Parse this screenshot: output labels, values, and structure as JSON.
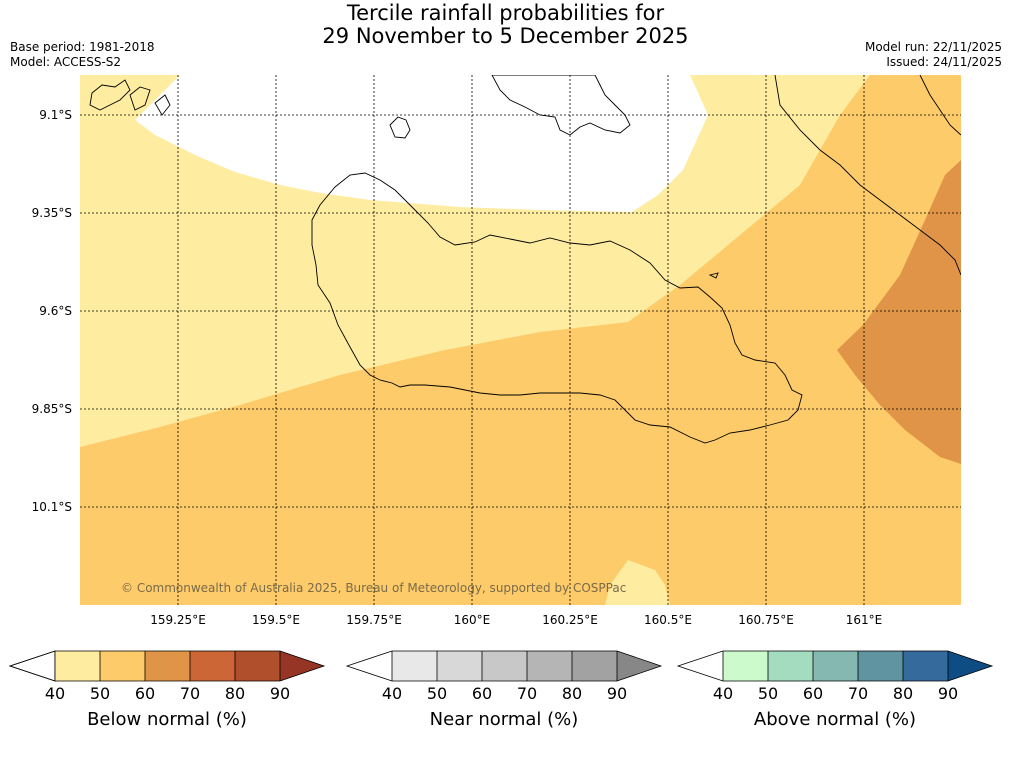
{
  "header": {
    "title_line1": "Tercile rainfall probabilities for",
    "title_line2": "29 November to 5 December 2025",
    "base_period": "Base period: 1981-2018",
    "model": "Model: ACCESS-S2",
    "model_run": "Model run: 22/11/2025",
    "issued": "Issued: 24/11/2025"
  },
  "map": {
    "lat_labels": [
      "9.1°S",
      "9.35°S",
      "9.6°S",
      "9.85°S",
      "10.1°S"
    ],
    "lon_labels": [
      "159.25°E",
      "159.5°E",
      "159.75°E",
      "160°E",
      "160.25°E",
      "160.5°E",
      "160.75°E",
      "161°E"
    ],
    "copyright": "© Commonwealth of Australia 2025, Bureau of Meteorology, supported by COSPPac",
    "colors": {
      "below_40_50": "#feeca0",
      "below_50_60": "#fdcb69",
      "below_60_70": "#e09448",
      "white": "#ffffff"
    }
  },
  "colorbars": [
    {
      "name": "below",
      "title": "Below normal (%)",
      "ticks": [
        "40",
        "50",
        "60",
        "70",
        "80",
        "90"
      ],
      "colors": [
        "#feeca0",
        "#fdcb69",
        "#e09448",
        "#cd6637",
        "#b04f2b",
        "#963525"
      ]
    },
    {
      "name": "near",
      "title": "Near normal (%)",
      "ticks": [
        "40",
        "50",
        "60",
        "70",
        "80",
        "90"
      ],
      "colors": [
        "#e8e8e8",
        "#d8d8d8",
        "#c8c8c8",
        "#b5b5b5",
        "#a2a2a2",
        "#878787"
      ]
    },
    {
      "name": "above",
      "title": "Above normal (%)",
      "ticks": [
        "40",
        "50",
        "60",
        "70",
        "80",
        "90"
      ],
      "colors": [
        "#ccfacc",
        "#a4dcc0",
        "#84b8b0",
        "#5f94a0",
        "#346a9c",
        "#0e4c84"
      ]
    }
  ]
}
